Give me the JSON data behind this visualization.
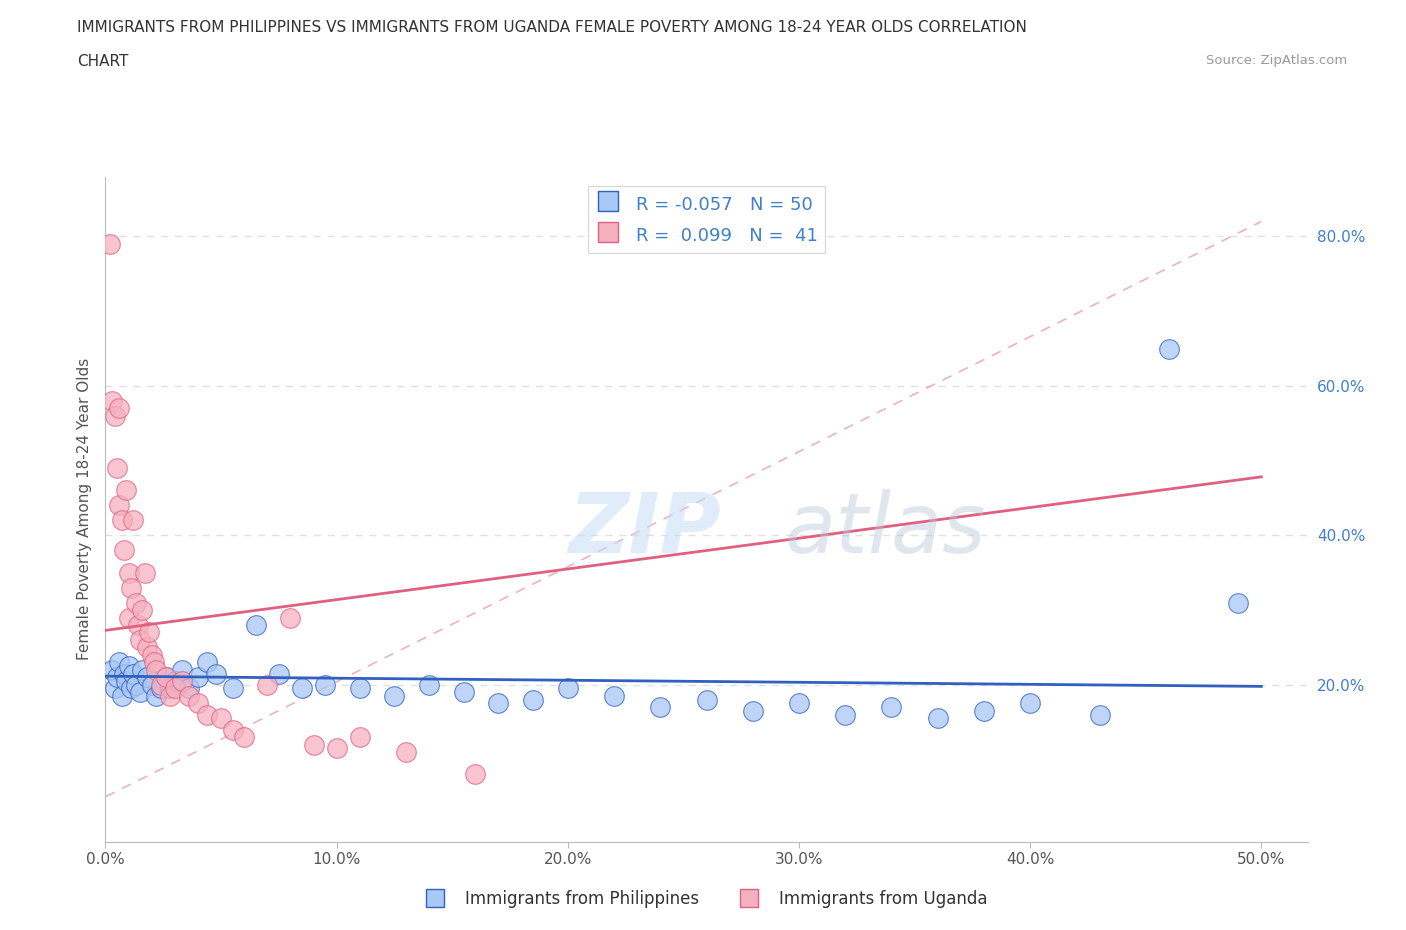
{
  "title_line1": "IMMIGRANTS FROM PHILIPPINES VS IMMIGRANTS FROM UGANDA FEMALE POVERTY AMONG 18-24 YEAR OLDS CORRELATION",
  "title_line2": "CHART",
  "source": "Source: ZipAtlas.com",
  "ylabel": "Female Poverty Among 18-24 Year Olds",
  "xlim": [
    0.0,
    0.52
  ],
  "ylim": [
    -0.01,
    0.88
  ],
  "plot_xlim": [
    0.0,
    0.5
  ],
  "plot_ylim": [
    0.0,
    0.85
  ],
  "xticks": [
    0.0,
    0.1,
    0.2,
    0.3,
    0.4,
    0.5
  ],
  "xtick_labels": [
    "0.0%",
    "10.0%",
    "20.0%",
    "30.0%",
    "40.0%",
    "50.0%"
  ],
  "ytick_values_right": [
    0.2,
    0.4,
    0.6,
    0.8
  ],
  "ytick_labels_right": [
    "20.0%",
    "40.0%",
    "60.0%",
    "80.0%"
  ],
  "color_philippines": "#a8c8f5",
  "color_uganda": "#f5b0c0",
  "color_line_philippines": "#3060c0",
  "color_line_uganda": "#e06080",
  "color_dashed": "#e8a0b0",
  "color_axis_labels": "#4080c8",
  "color_text": "#333333",
  "R_philippines": -0.057,
  "N_philippines": 50,
  "R_uganda": 0.099,
  "N_uganda": 41,
  "legend_label_philippines": "Immigrants from Philippines",
  "legend_label_uganda": "Immigrants from Uganda",
  "philippines_x": [
    0.003,
    0.004,
    0.005,
    0.006,
    0.007,
    0.008,
    0.009,
    0.01,
    0.011,
    0.012,
    0.013,
    0.015,
    0.016,
    0.018,
    0.02,
    0.022,
    0.024,
    0.026,
    0.028,
    0.03,
    0.033,
    0.036,
    0.04,
    0.044,
    0.048,
    0.055,
    0.065,
    0.075,
    0.085,
    0.095,
    0.11,
    0.125,
    0.14,
    0.155,
    0.17,
    0.185,
    0.2,
    0.22,
    0.24,
    0.26,
    0.28,
    0.3,
    0.32,
    0.34,
    0.36,
    0.38,
    0.4,
    0.43,
    0.46,
    0.49
  ],
  "philippines_y": [
    0.22,
    0.195,
    0.21,
    0.23,
    0.185,
    0.215,
    0.205,
    0.225,
    0.195,
    0.215,
    0.2,
    0.19,
    0.22,
    0.21,
    0.2,
    0.185,
    0.195,
    0.21,
    0.195,
    0.205,
    0.22,
    0.195,
    0.21,
    0.23,
    0.215,
    0.195,
    0.28,
    0.215,
    0.195,
    0.2,
    0.195,
    0.185,
    0.2,
    0.19,
    0.175,
    0.18,
    0.195,
    0.185,
    0.17,
    0.18,
    0.165,
    0.175,
    0.16,
    0.17,
    0.155,
    0.165,
    0.175,
    0.16,
    0.65,
    0.31
  ],
  "uganda_x": [
    0.002,
    0.003,
    0.004,
    0.005,
    0.006,
    0.006,
    0.007,
    0.008,
    0.009,
    0.01,
    0.01,
    0.011,
    0.012,
    0.013,
    0.014,
    0.015,
    0.016,
    0.017,
    0.018,
    0.019,
    0.02,
    0.021,
    0.022,
    0.024,
    0.026,
    0.028,
    0.03,
    0.033,
    0.036,
    0.04,
    0.044,
    0.05,
    0.055,
    0.06,
    0.07,
    0.08,
    0.09,
    0.1,
    0.11,
    0.13,
    0.16
  ],
  "uganda_y": [
    0.79,
    0.58,
    0.56,
    0.49,
    0.57,
    0.44,
    0.42,
    0.38,
    0.46,
    0.35,
    0.29,
    0.33,
    0.42,
    0.31,
    0.28,
    0.26,
    0.3,
    0.35,
    0.25,
    0.27,
    0.24,
    0.23,
    0.22,
    0.2,
    0.21,
    0.185,
    0.195,
    0.205,
    0.185,
    0.175,
    0.16,
    0.155,
    0.14,
    0.13,
    0.2,
    0.29,
    0.12,
    0.115,
    0.13,
    0.11,
    0.08
  ],
  "watermark_zip": "ZIP",
  "watermark_atlas": "atlas",
  "background_color": "#ffffff",
  "grid_color": "#e0e0e0"
}
